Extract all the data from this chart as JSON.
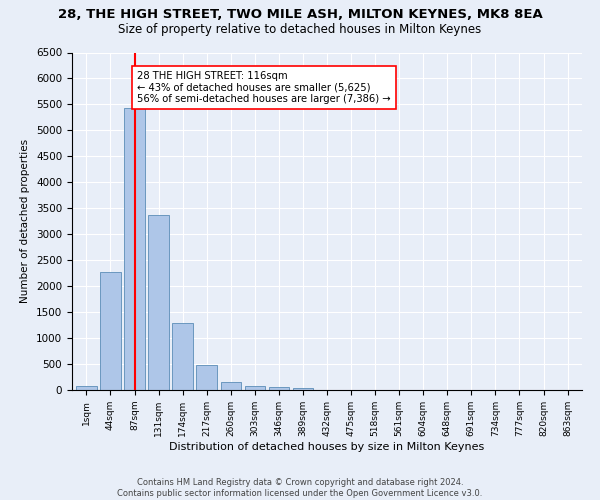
{
  "title": "28, THE HIGH STREET, TWO MILE ASH, MILTON KEYNES, MK8 8EA",
  "subtitle": "Size of property relative to detached houses in Milton Keynes",
  "xlabel": "Distribution of detached houses by size in Milton Keynes",
  "ylabel": "Number of detached properties",
  "footer_line1": "Contains HM Land Registry data © Crown copyright and database right 2024.",
  "footer_line2": "Contains public sector information licensed under the Open Government Licence v3.0.",
  "bar_labels": [
    "1sqm",
    "44sqm",
    "87sqm",
    "131sqm",
    "174sqm",
    "217sqm",
    "260sqm",
    "303sqm",
    "346sqm",
    "389sqm",
    "432sqm",
    "475sqm",
    "518sqm",
    "561sqm",
    "604sqm",
    "648sqm",
    "691sqm",
    "734sqm",
    "777sqm",
    "820sqm",
    "863sqm"
  ],
  "bar_values": [
    70,
    2270,
    5430,
    3380,
    1300,
    475,
    155,
    85,
    55,
    40,
    0,
    0,
    0,
    0,
    0,
    0,
    0,
    0,
    0,
    0,
    0
  ],
  "bar_color": "#aec6e8",
  "bar_edge_color": "#5b8db8",
  "vline_x": 2,
  "vline_color": "red",
  "annotation_text": "28 THE HIGH STREET: 116sqm\n← 43% of detached houses are smaller (5,625)\n56% of semi-detached houses are larger (7,386) →",
  "annotation_box_color": "white",
  "annotation_box_edge": "red",
  "ylim": [
    0,
    6500
  ],
  "yticks": [
    0,
    500,
    1000,
    1500,
    2000,
    2500,
    3000,
    3500,
    4000,
    4500,
    5000,
    5500,
    6000,
    6500
  ],
  "background_color": "#e8eef8",
  "plot_background": "#e8eef8",
  "grid_color": "white",
  "title_fontsize": 9.5,
  "subtitle_fontsize": 8.5
}
